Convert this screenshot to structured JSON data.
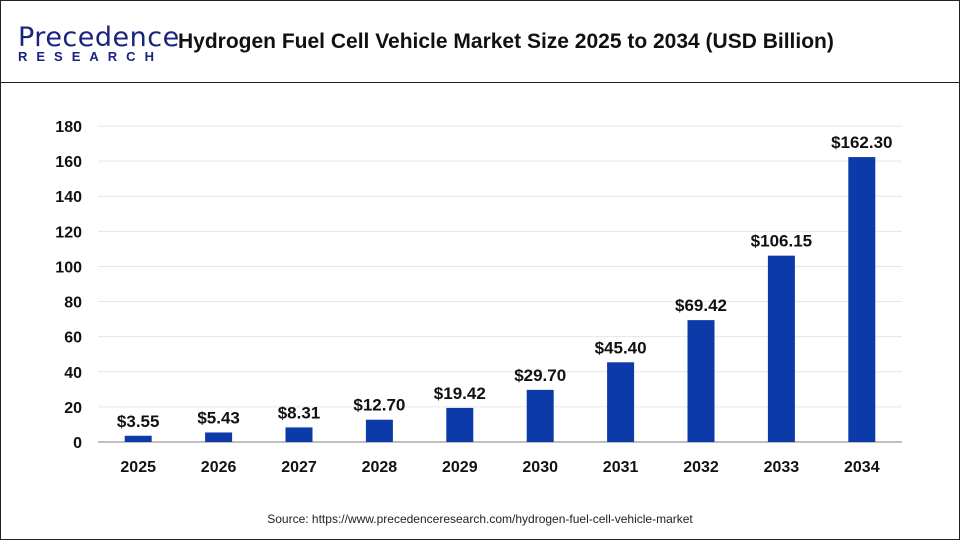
{
  "header": {
    "logo_line1": "Precedence",
    "logo_line2": "RESEARCH",
    "title": "Hydrogen Fuel Cell Vehicle Market Size 2025 to 2034 (USD Billion)"
  },
  "chart_data": {
    "type": "bar",
    "title": "Hydrogen Fuel Cell Vehicle Market Size 2025 to 2034 (USD Billion)",
    "xlabel": "",
    "ylabel": "",
    "categories": [
      "2025",
      "2026",
      "2027",
      "2028",
      "2029",
      "2030",
      "2031",
      "2032",
      "2033",
      "2034"
    ],
    "values": [
      3.55,
      5.43,
      8.31,
      12.7,
      19.42,
      29.7,
      45.4,
      69.42,
      106.15,
      162.3
    ],
    "data_labels": [
      "$3.55",
      "$5.43",
      "$8.31",
      "$12.70",
      "$19.42",
      "$29.70",
      "$45.40",
      "$69.42",
      "$106.15",
      "$162.30"
    ],
    "ylim": [
      0,
      180
    ],
    "yticks": [
      0,
      20,
      40,
      60,
      80,
      100,
      120,
      140,
      160,
      180
    ],
    "grid": true,
    "bar_color": "#0d3aa9"
  },
  "footer": {
    "source": "Source: https://www.precedenceresearch.com/hydrogen-fuel-cell-vehicle-market"
  }
}
